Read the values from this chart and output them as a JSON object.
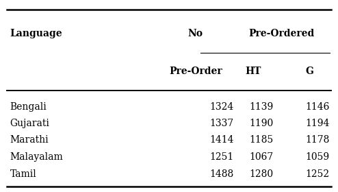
{
  "languages": [
    "Bengali",
    "Gujarati",
    "Marathi",
    "Malayalam",
    "Tamil"
  ],
  "no_preorder": [
    1324,
    1337,
    1414,
    1251,
    1488
  ],
  "ht": [
    1139,
    1190,
    1185,
    1067,
    1280
  ],
  "g": [
    1146,
    1194,
    1178,
    1059,
    1252
  ],
  "bg_color": "#ffffff",
  "text_color": "#000000",
  "font_size": 10,
  "header_font_size": 10
}
